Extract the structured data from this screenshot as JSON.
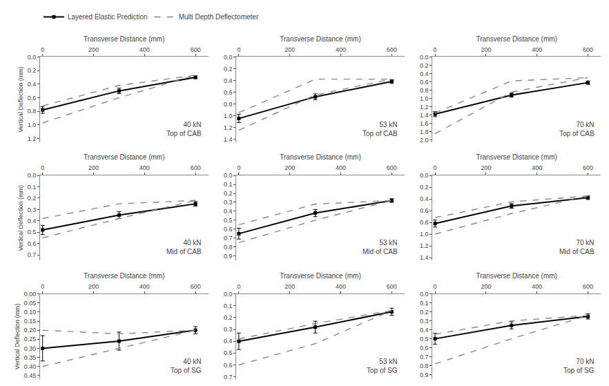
{
  "chart_data": [
    {
      "type": "line",
      "annotations": [
        "40 kN\nTop of CAB"
      ],
      "x_label": "Transverse Distance (mm)",
      "y_label": "Vertical Deflection (mm)",
      "x": [
        0,
        300,
        600
      ],
      "series": [
        {
          "name": "Layered Elastic Prediction",
          "color": "#000000",
          "line_style": "solid",
          "marker": "square",
          "values": [
            0.78,
            0.5,
            0.3
          ],
          "errors": [
            0.05,
            0.04,
            0.02
          ]
        },
        {
          "name": "Multi Depth Deflectometer",
          "color": "#888888",
          "line_style": "dashed",
          "values": [
            0.72,
            0.42,
            0.27
          ]
        },
        {
          "name": "Multi Depth Deflectometer",
          "color": "#888888",
          "line_style": "dashed",
          "values": [
            0.97,
            0.6,
            0.27
          ]
        }
      ],
      "xlim": [
        -10,
        650
      ],
      "xticks": [
        0,
        200,
        400,
        600
      ],
      "ylim": [
        1.25,
        0
      ],
      "yticks": [
        {
          "value": 0,
          "label": "0.0"
        },
        0.2,
        0.4,
        0.6,
        0.8,
        {
          "value": 1.0,
          "label": "1.0"
        },
        1.2
      ],
      "grid": false,
      "legend": "upper left"
    },
    {
      "type": "line",
      "annotations": [
        "53 kN\nTop of CAB"
      ],
      "x_label": "Transverse Distance (mm)",
      "x": [
        0,
        300,
        600
      ],
      "series": [
        {
          "name": "Layered Elastic Prediction",
          "color": "#000000",
          "line_style": "solid",
          "marker": "square",
          "values": [
            1.05,
            0.68,
            0.42
          ],
          "errors": [
            0.07,
            0.05,
            0.03
          ]
        },
        {
          "name": "Multi Depth Deflectometer",
          "color": "#888888",
          "line_style": "dashed",
          "values": [
            0.95,
            0.38,
            0.38
          ]
        },
        {
          "name": "Multi Depth Deflectometer",
          "color": "#888888",
          "line_style": "dashed",
          "values": [
            1.25,
            0.65,
            0.38
          ]
        }
      ],
      "xlim": [
        -10,
        650
      ],
      "xticks": [
        0,
        200,
        400,
        600
      ],
      "ylim": [
        1.45,
        0
      ],
      "yticks": [
        {
          "value": 0,
          "label": "0.0"
        },
        0.2,
        0.4,
        0.6,
        0.8,
        {
          "value": 1.0,
          "label": "1.0"
        },
        1.2,
        1.4
      ],
      "grid": false
    },
    {
      "type": "line",
      "annotations": [
        "70 kN\nTop of CAB"
      ],
      "x_label": "Transverse Distance (mm)",
      "x": [
        0,
        300,
        600
      ],
      "series": [
        {
          "name": "Layered Elastic Prediction",
          "color": "#000000",
          "line_style": "solid",
          "marker": "square",
          "values": [
            1.38,
            0.92,
            0.62
          ],
          "errors": [
            0.06,
            0.05,
            0.04
          ]
        },
        {
          "name": "Multi Depth Deflectometer",
          "color": "#888888",
          "line_style": "dashed",
          "values": [
            1.35,
            0.58,
            0.5
          ]
        },
        {
          "name": "Multi Depth Deflectometer",
          "color": "#888888",
          "line_style": "dashed",
          "values": [
            1.85,
            0.85,
            0.5
          ]
        }
      ],
      "xlim": [
        -10,
        650
      ],
      "xticks": [
        0,
        200,
        400,
        600
      ],
      "ylim": [
        2.05,
        0
      ],
      "yticks": [
        {
          "value": 0,
          "label": "0.0"
        },
        0.2,
        0.4,
        0.6,
        0.8,
        {
          "value": 1.0,
          "label": "1.0"
        },
        1.2,
        1.4,
        1.6,
        1.8,
        {
          "value": 2.0,
          "label": "2.0"
        }
      ],
      "grid": false
    },
    {
      "type": "line",
      "annotations": [
        "40 kN\nMid of CAB"
      ],
      "x_label": "Transverse Distance (mm)",
      "y_label": "Vertical Deflection (mm)",
      "x": [
        0,
        300,
        600
      ],
      "series": [
        {
          "name": "Layered Elastic Prediction",
          "color": "#000000",
          "line_style": "solid",
          "marker": "square",
          "values": [
            0.48,
            0.35,
            0.25
          ],
          "errors": [
            0.04,
            0.03,
            0.02
          ]
        },
        {
          "name": "Multi Depth Deflectometer",
          "color": "#888888",
          "line_style": "dashed",
          "values": [
            0.38,
            0.25,
            0.22
          ]
        },
        {
          "name": "Multi Depth Deflectometer",
          "color": "#888888",
          "line_style": "dashed",
          "values": [
            0.55,
            0.38,
            0.22
          ]
        }
      ],
      "xlim": [
        -10,
        650
      ],
      "xticks": [
        0,
        200,
        400,
        600
      ],
      "ylim": [
        0.75,
        0
      ],
      "yticks": [
        {
          "value": 0,
          "label": "0.0"
        },
        0.1,
        0.2,
        0.3,
        0.4,
        0.5,
        0.6,
        0.7
      ],
      "grid": false
    },
    {
      "type": "line",
      "annotations": [
        "53 kN\nMid of CAB"
      ],
      "x_label": "Transverse Distance (mm)",
      "x": [
        0,
        300,
        600
      ],
      "series": [
        {
          "name": "Layered Elastic Prediction",
          "color": "#000000",
          "line_style": "solid",
          "marker": "square",
          "values": [
            0.65,
            0.42,
            0.28
          ],
          "errors": [
            0.06,
            0.04,
            0.02
          ]
        },
        {
          "name": "Multi Depth Deflectometer",
          "color": "#888888",
          "line_style": "dashed",
          "values": [
            0.55,
            0.32,
            0.28
          ]
        },
        {
          "name": "Multi Depth Deflectometer",
          "color": "#888888",
          "line_style": "dashed",
          "values": [
            0.75,
            0.5,
            0.28
          ]
        }
      ],
      "xlim": [
        -10,
        650
      ],
      "xticks": [
        0,
        200,
        400,
        600
      ],
      "ylim": [
        0.95,
        0
      ],
      "yticks": [
        {
          "value": 0,
          "label": "0.0"
        },
        0.1,
        0.2,
        0.3,
        0.4,
        0.5,
        0.6,
        0.7,
        0.8,
        0.9
      ],
      "grid": false
    },
    {
      "type": "line",
      "annotations": [
        "70 kN\nMid of CAB"
      ],
      "x_label": "Transverse Distance (mm)",
      "x": [
        0,
        300,
        600
      ],
      "series": [
        {
          "name": "Layered Elastic Prediction",
          "color": "#000000",
          "line_style": "solid",
          "marker": "square",
          "values": [
            0.82,
            0.52,
            0.38
          ],
          "errors": [
            0.06,
            0.04,
            0.03
          ]
        },
        {
          "name": "Multi Depth Deflectometer",
          "color": "#888888",
          "line_style": "dashed",
          "values": [
            0.72,
            0.45,
            0.35
          ]
        },
        {
          "name": "Multi Depth Deflectometer",
          "color": "#888888",
          "line_style": "dashed",
          "values": [
            1.0,
            0.65,
            0.35
          ]
        }
      ],
      "xlim": [
        -10,
        650
      ],
      "xticks": [
        0,
        200,
        400,
        600
      ],
      "ylim": [
        1.45,
        0
      ],
      "yticks": [
        {
          "value": 0,
          "label": "0.0"
        },
        0.2,
        0.4,
        0.6,
        0.8,
        {
          "value": 1.0,
          "label": "1.0"
        },
        1.2,
        1.4
      ],
      "grid": false
    },
    {
      "type": "line",
      "annotations": [
        "40 kN\nTop of SG"
      ],
      "x_label": "Transverse Distance (mm)",
      "y_label": "Vertical Deflection (mm)",
      "x": [
        0,
        300,
        600
      ],
      "series": [
        {
          "name": "Layered Elastic Prediction",
          "color": "#000000",
          "line_style": "solid",
          "marker": "square",
          "values": [
            0.3,
            0.26,
            0.2
          ],
          "errors": [
            0.07,
            0.05,
            0.02
          ]
        },
        {
          "name": "Multi Depth Deflectometer",
          "color": "#888888",
          "line_style": "dashed",
          "values": [
            0.2,
            0.22,
            0.2
          ]
        },
        {
          "name": "Multi Depth Deflectometer",
          "color": "#888888",
          "line_style": "dashed",
          "values": [
            0.4,
            0.3,
            0.2
          ]
        }
      ],
      "xlim": [
        -10,
        650
      ],
      "xticks": [
        0,
        200,
        400,
        600
      ],
      "ylim": [
        0.47,
        0
      ],
      "yticks": [
        {
          "value": 0,
          "label": "0.00"
        },
        0.05,
        {
          "value": 0.1,
          "label": "0.10"
        },
        0.15,
        {
          "value": 0.2,
          "label": "0.20"
        },
        0.25,
        {
          "value": 0.3,
          "label": "0.30"
        },
        0.35,
        {
          "value": 0.4,
          "label": "0.40"
        },
        0.45
      ],
      "grid": false
    },
    {
      "type": "line",
      "annotations": [
        "53 kN\nTop of SG"
      ],
      "x_label": "Transverse Distance (mm)",
      "x": [
        0,
        300,
        600
      ],
      "series": [
        {
          "name": "Layered Elastic Prediction",
          "color": "#000000",
          "line_style": "solid",
          "marker": "square",
          "values": [
            0.4,
            0.28,
            0.15
          ],
          "errors": [
            0.07,
            0.05,
            0.03
          ]
        },
        {
          "name": "Multi Depth Deflectometer",
          "color": "#888888",
          "line_style": "dashed",
          "values": [
            0.38,
            0.25,
            0.14
          ]
        },
        {
          "name": "Multi Depth Deflectometer",
          "color": "#888888",
          "line_style": "dashed",
          "values": [
            0.6,
            0.42,
            0.14
          ]
        }
      ],
      "xlim": [
        -10,
        650
      ],
      "xticks": [
        0,
        200,
        400,
        600
      ],
      "ylim": [
        0.72,
        0
      ],
      "yticks": [
        {
          "value": 0,
          "label": "0.0"
        },
        0.1,
        0.2,
        0.3,
        0.4,
        0.5,
        0.6,
        0.7
      ],
      "grid": false
    },
    {
      "type": "line",
      "annotations": [
        "70 kN\nTop of SG"
      ],
      "x_label": "Transverse Distance (mm)",
      "x": [
        0,
        300,
        600
      ],
      "series": [
        {
          "name": "Layered Elastic Prediction",
          "color": "#000000",
          "line_style": "solid",
          "marker": "square",
          "values": [
            0.5,
            0.35,
            0.25
          ],
          "errors": [
            0.06,
            0.04,
            0.03
          ]
        },
        {
          "name": "Multi Depth Deflectometer",
          "color": "#888888",
          "line_style": "dashed",
          "values": [
            0.45,
            0.3,
            0.24
          ]
        },
        {
          "name": "Multi Depth Deflectometer",
          "color": "#888888",
          "line_style": "dashed",
          "values": [
            0.78,
            0.5,
            0.24
          ]
        }
      ],
      "xlim": [
        -10,
        650
      ],
      "xticks": [
        0,
        200,
        400,
        600
      ],
      "ylim": [
        0.95,
        0
      ],
      "yticks": [
        {
          "value": 0,
          "label": "0.0"
        },
        0.1,
        0.2,
        0.3,
        0.4,
        0.5,
        0.6,
        0.7,
        0.8,
        0.9
      ],
      "grid": false
    }
  ]
}
